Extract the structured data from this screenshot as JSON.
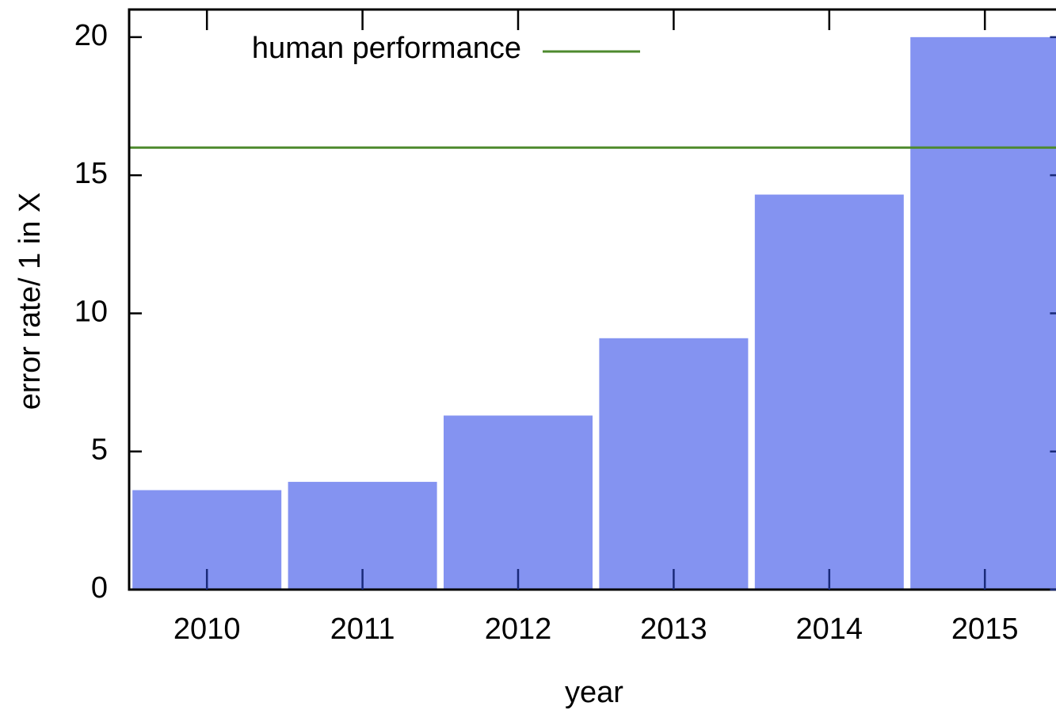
{
  "chart_data": {
    "type": "bar",
    "xlabel": "year",
    "ylabel": "error rate/ 1 in X",
    "categories": [
      "2010",
      "2011",
      "2012",
      "2013",
      "2014",
      "2015"
    ],
    "values": [
      3.6,
      3.9,
      6.3,
      9.1,
      14.3,
      20.0
    ],
    "color": "#8493f1",
    "ylim": [
      0,
      21
    ],
    "yticks": [
      0,
      5,
      10,
      15,
      20
    ],
    "reference_lines": [
      {
        "name": "human performance",
        "value": 16,
        "color": "#4e8a2e"
      }
    ],
    "legend": "top-left"
  }
}
